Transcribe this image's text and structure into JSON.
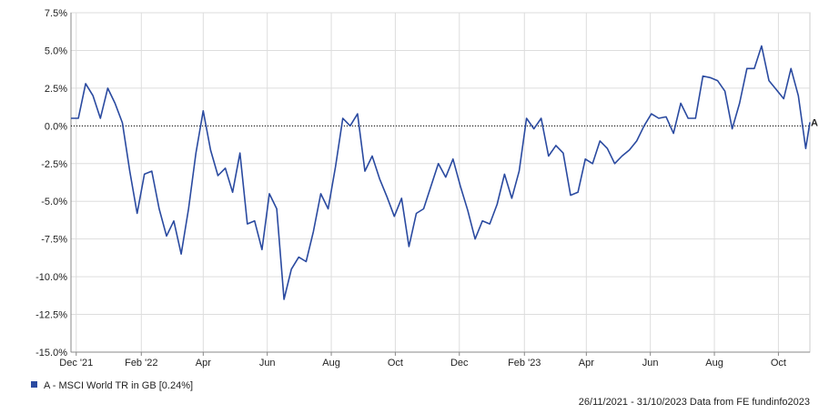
{
  "chart_data": {
    "type": "line",
    "x": [
      "2021-11-26",
      "2021-12-03",
      "2021-12-10",
      "2021-12-17",
      "2021-12-24",
      "2021-12-31",
      "2022-01-07",
      "2022-01-14",
      "2022-01-21",
      "2022-01-28",
      "2022-02-04",
      "2022-02-11",
      "2022-02-18",
      "2022-02-25",
      "2022-03-04",
      "2022-03-11",
      "2022-03-18",
      "2022-03-25",
      "2022-04-01",
      "2022-04-08",
      "2022-04-15",
      "2022-04-22",
      "2022-04-29",
      "2022-05-06",
      "2022-05-13",
      "2022-05-20",
      "2022-05-27",
      "2022-06-03",
      "2022-06-10",
      "2022-06-17",
      "2022-06-24",
      "2022-07-01",
      "2022-07-08",
      "2022-07-15",
      "2022-07-22",
      "2022-07-29",
      "2022-08-05",
      "2022-08-12",
      "2022-08-19",
      "2022-08-26",
      "2022-09-02",
      "2022-09-09",
      "2022-09-16",
      "2022-09-23",
      "2022-09-30",
      "2022-10-07",
      "2022-10-14",
      "2022-10-21",
      "2022-10-28",
      "2022-11-04",
      "2022-11-11",
      "2022-11-18",
      "2022-11-25",
      "2022-12-02",
      "2022-12-09",
      "2022-12-16",
      "2022-12-23",
      "2022-12-30",
      "2023-01-06",
      "2023-01-13",
      "2023-01-20",
      "2023-01-27",
      "2023-02-03",
      "2023-02-10",
      "2023-02-17",
      "2023-02-24",
      "2023-03-03",
      "2023-03-10",
      "2023-03-17",
      "2023-03-24",
      "2023-03-31",
      "2023-04-07",
      "2023-04-14",
      "2023-04-21",
      "2023-04-28",
      "2023-05-05",
      "2023-05-12",
      "2023-05-19",
      "2023-05-26",
      "2023-06-02",
      "2023-06-09",
      "2023-06-16",
      "2023-06-23",
      "2023-06-30",
      "2023-07-07",
      "2023-07-14",
      "2023-07-21",
      "2023-07-28",
      "2023-08-04",
      "2023-08-11",
      "2023-08-18",
      "2023-08-25",
      "2023-09-01",
      "2023-09-08",
      "2023-09-15",
      "2023-09-22",
      "2023-09-29",
      "2023-10-06",
      "2023-10-13",
      "2023-10-20",
      "2023-10-27",
      "2023-10-31"
    ],
    "series": [
      {
        "name": "A - MSCI World TR in GB [0.24%]",
        "marker_label": "A",
        "color": "#2a4aa0",
        "values": [
          0.5,
          0.5,
          2.8,
          2.0,
          0.5,
          2.5,
          1.5,
          0.2,
          -3.0,
          -5.8,
          -3.2,
          -3.0,
          -5.5,
          -7.3,
          -6.3,
          -8.5,
          -5.5,
          -1.8,
          1.0,
          -1.6,
          -3.3,
          -2.8,
          -4.4,
          -1.8,
          -6.5,
          -6.3,
          -8.2,
          -4.5,
          -5.5,
          -11.5,
          -9.5,
          -8.7,
          -9.0,
          -7.0,
          -4.5,
          -5.5,
          -2.7,
          0.5,
          0,
          0.8,
          -3.0,
          -2.0,
          -3.5,
          -4.7,
          -6.0,
          -4.8,
          -8.0,
          -5.8,
          -5.5,
          -4.0,
          -2.5,
          -3.4,
          -2.2,
          -4.0,
          -5.6,
          -7.5,
          -6.3,
          -6.5,
          -5.2,
          -3.2,
          -4.8,
          -3.0,
          0.5,
          -0.2,
          0.5,
          -2.0,
          -1.3,
          -1.8,
          -4.6,
          -4.4,
          -2.2,
          -2.5,
          -1.0,
          -1.5,
          -2.5,
          -2.0,
          -1.6,
          -1.0,
          0,
          0.8,
          0.5,
          0.6,
          -0.5,
          1.5,
          0.5,
          0.5,
          3.3,
          3.2,
          3.0,
          2.3,
          -0.2,
          1.5,
          3.8,
          3.8,
          5.3,
          3.0,
          2.4,
          1.8,
          3.8,
          2.0,
          -1.5,
          0.24
        ]
      }
    ],
    "xlim": [
      "2021-11-26",
      "2023-10-31"
    ],
    "xticks": [
      {
        "value": "2021-12-01",
        "label": "Dec '21"
      },
      {
        "value": "2022-02-01",
        "label": "Feb '22"
      },
      {
        "value": "2022-04-01",
        "label": "Apr"
      },
      {
        "value": "2022-06-01",
        "label": "Jun"
      },
      {
        "value": "2022-08-01",
        "label": "Aug"
      },
      {
        "value": "2022-10-01",
        "label": "Oct"
      },
      {
        "value": "2022-12-01",
        "label": "Dec"
      },
      {
        "value": "2023-02-01",
        "label": "Feb '23"
      },
      {
        "value": "2023-04-01",
        "label": "Apr"
      },
      {
        "value": "2023-06-01",
        "label": "Jun"
      },
      {
        "value": "2023-08-01",
        "label": "Aug"
      },
      {
        "value": "2023-10-01",
        "label": "Oct"
      }
    ],
    "ylim": [
      -15,
      7.5
    ],
    "yticks": [
      {
        "value": -15,
        "label": "-15.0%"
      },
      {
        "value": -12.5,
        "label": "-12.5%"
      },
      {
        "value": -10,
        "label": "-10.0%"
      },
      {
        "value": -7.5,
        "label": "-7.5%"
      },
      {
        "value": -5,
        "label": "-5.0%"
      },
      {
        "value": -2.5,
        "label": "-2.5%"
      },
      {
        "value": 0,
        "label": "0.0%"
      },
      {
        "value": 2.5,
        "label": "2.5%"
      },
      {
        "value": 5,
        "label": "5.0%"
      },
      {
        "value": 7.5,
        "label": "7.5%"
      }
    ],
    "reference_line": 0,
    "grid": true,
    "footer": "26/11/2021 - 31/10/2023 Data from FE fundinfo2023"
  }
}
